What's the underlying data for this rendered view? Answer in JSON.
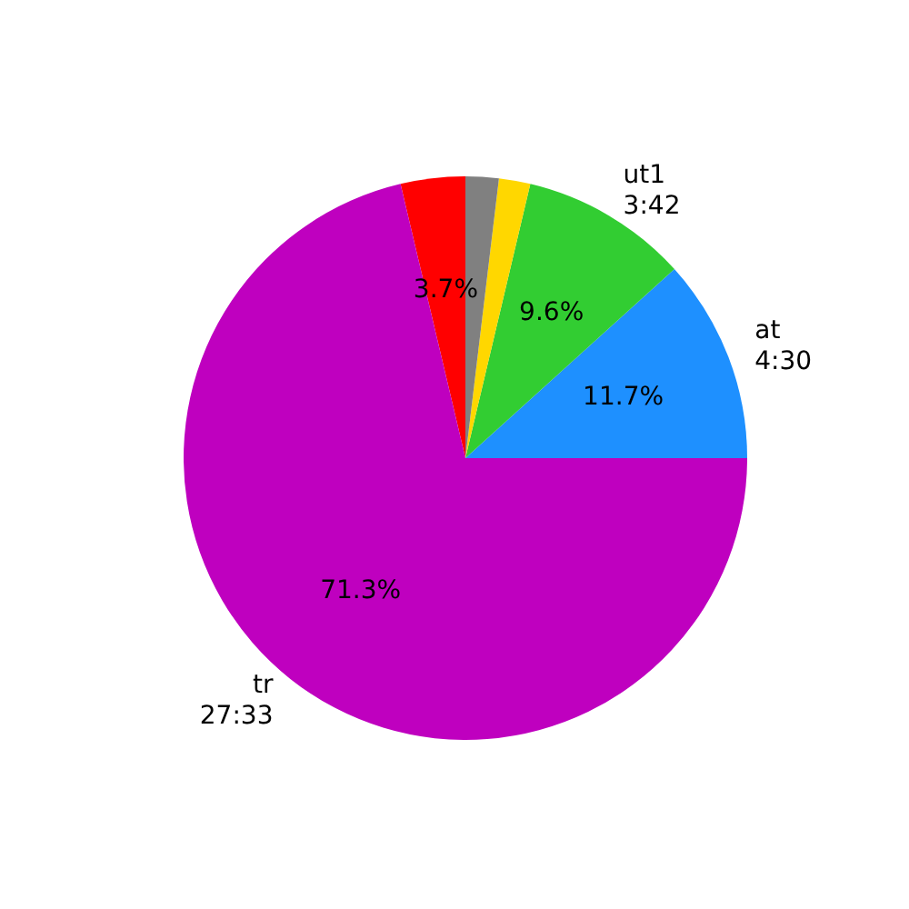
{
  "chart_data": {
    "type": "pie",
    "categories": [
      "at\n4:30",
      "ut1\n3:42",
      null,
      null,
      null,
      "tr\n27:33"
    ],
    "values": [
      11.7,
      9.6,
      1.8,
      1.9,
      3.7,
      71.3
    ],
    "colors": [
      "#1e90ff",
      "#32cd32",
      "#ffd700",
      "#808080",
      "#ff0000",
      "#bf00bf"
    ],
    "value_labels": [
      "11.7%",
      "9.6%",
      null,
      null,
      "3.7%",
      "71.3%"
    ]
  }
}
